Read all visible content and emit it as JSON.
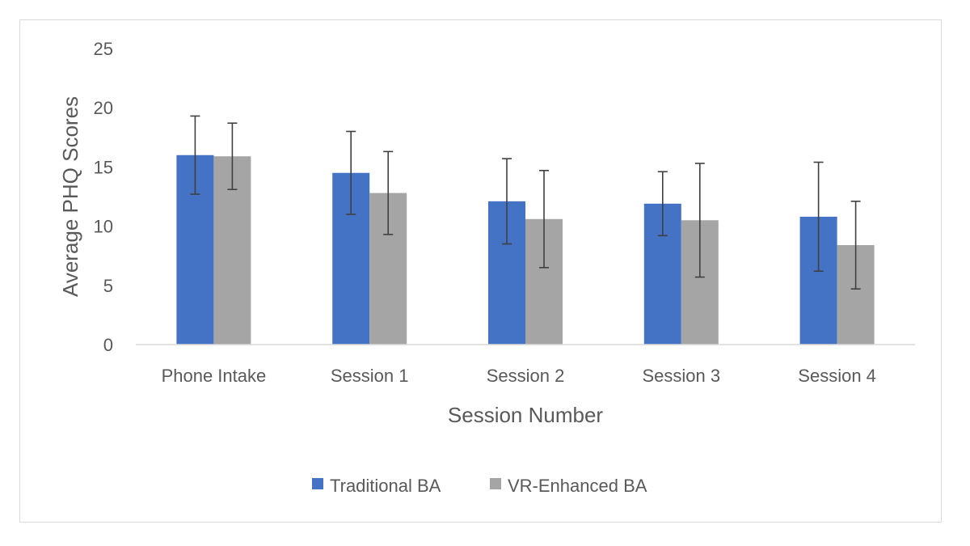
{
  "chart_data": {
    "type": "bar",
    "title": "",
    "xlabel": "Session Number",
    "ylabel": "Average PHQ Scores",
    "ylim": [
      0,
      25
    ],
    "yticks": [
      0,
      5,
      10,
      15,
      20,
      25
    ],
    "yticks_text": [
      "0",
      "5",
      "10",
      "15",
      "20",
      "25"
    ],
    "grid": false,
    "legend_position": "bottom",
    "categories": [
      "Phone Intake",
      "Session 1",
      "Session 2",
      "Session 3",
      "Session 4"
    ],
    "series": [
      {
        "name": "Traditional BA",
        "color": "#4472C4",
        "values": [
          16.0,
          14.5,
          12.1,
          11.9,
          10.8
        ],
        "error": [
          3.3,
          3.5,
          3.6,
          2.7,
          4.6
        ]
      },
      {
        "name": "VR-Enhanced BA",
        "color": "#A5A5A5",
        "values": [
          15.9,
          12.8,
          10.6,
          10.5,
          8.4
        ],
        "error": [
          2.8,
          3.5,
          4.1,
          4.8,
          3.7
        ]
      }
    ]
  }
}
